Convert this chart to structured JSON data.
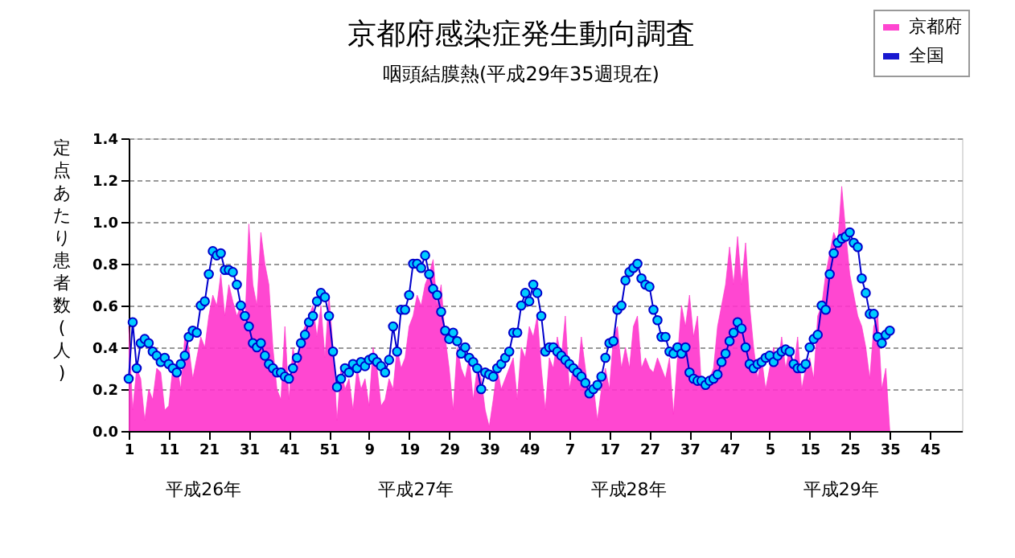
{
  "chart_data": {
    "type": "line",
    "title": "京都府感染症発生動向調査",
    "subtitle": "咽頭結膜熱(平成29年35週現在)",
    "ylabel": "定点あたり患者数(人)",
    "categories": [
      "1",
      null,
      null,
      null,
      null,
      null,
      null,
      null,
      null,
      null,
      "11",
      null,
      null,
      null,
      null,
      null,
      null,
      null,
      null,
      null,
      "21",
      null,
      null,
      null,
      null,
      null,
      null,
      null,
      null,
      null,
      "31",
      null,
      null,
      null,
      null,
      null,
      null,
      null,
      null,
      null,
      "41",
      null,
      null,
      null,
      null,
      null,
      null,
      null,
      null,
      null,
      "51",
      null,
      null,
      null,
      null,
      null,
      null,
      null,
      null,
      null,
      "9",
      null,
      null,
      null,
      null,
      null,
      null,
      null,
      null,
      null,
      "19",
      null,
      null,
      null,
      null,
      null,
      null,
      null,
      null,
      null,
      "29",
      null,
      null,
      null,
      null,
      null,
      null,
      null,
      null,
      null,
      "39",
      null,
      null,
      null,
      null,
      null,
      null,
      null,
      null,
      null,
      "49",
      null,
      null,
      null,
      null,
      null,
      null,
      null,
      null,
      null,
      "7",
      null,
      null,
      null,
      null,
      null,
      null,
      null,
      null,
      null,
      "17",
      null,
      null,
      null,
      null,
      null,
      null,
      null,
      null,
      null,
      "27",
      null,
      null,
      null,
      null,
      null,
      null,
      null,
      null,
      null,
      "37",
      null,
      null,
      null,
      null,
      null,
      null,
      null,
      null,
      null,
      "47",
      null,
      null,
      null,
      null,
      null,
      null,
      null,
      null,
      null,
      "5",
      null,
      null,
      null,
      null,
      null,
      null,
      null,
      null,
      null,
      "15",
      null,
      null,
      null,
      null,
      null,
      null,
      null,
      null,
      null,
      "25",
      null,
      null,
      null,
      null,
      null,
      null,
      null,
      null,
      null,
      "35",
      null,
      null,
      null,
      null,
      null,
      null,
      null,
      null,
      null,
      "45",
      null,
      null,
      null,
      null,
      null,
      null,
      null,
      null
    ],
    "series": [
      {
        "name": "京都府",
        "type": "area",
        "color": "#ff33cc",
        "values": [
          0.5,
          0.1,
          0.3,
          0.25,
          0.05,
          0.2,
          0.15,
          0.3,
          0.28,
          0.1,
          0.12,
          0.3,
          0.32,
          0.2,
          0.45,
          0.4,
          0.25,
          0.35,
          0.45,
          0.4,
          0.55,
          0.65,
          0.6,
          0.75,
          0.55,
          0.7,
          0.62,
          0.55,
          0.6,
          0.5,
          0.99,
          0.7,
          0.6,
          0.95,
          0.8,
          0.7,
          0.4,
          0.2,
          0.15,
          0.5,
          0.15,
          0.4,
          0.3,
          0.45,
          0.5,
          0.55,
          0.6,
          0.45,
          0.6,
          0.35,
          0.65,
          0.4,
          0.05,
          0.3,
          0.2,
          0.25,
          0.1,
          0.3,
          0.2,
          0.25,
          0.12,
          0.4,
          0.3,
          0.12,
          0.15,
          0.25,
          0.2,
          0.4,
          0.3,
          0.35,
          0.5,
          0.55,
          0.65,
          0.6,
          0.7,
          0.75,
          0.82,
          0.6,
          0.7,
          0.45,
          0.3,
          0.1,
          0.4,
          0.3,
          0.25,
          0.35,
          0.15,
          0.3,
          0.25,
          0.1,
          0.02,
          0.15,
          0.3,
          0.2,
          0.25,
          0.3,
          0.35,
          0.15,
          0.4,
          0.35,
          0.5,
          0.45,
          0.55,
          0.3,
          0.1,
          0.35,
          0.3,
          0.45,
          0.35,
          0.55,
          0.2,
          0.3,
          0.25,
          0.45,
          0.3,
          0.15,
          0.22,
          0.05,
          0.2,
          0.3,
          0.2,
          0.45,
          0.5,
          0.3,
          0.4,
          0.3,
          0.5,
          0.55,
          0.3,
          0.35,
          0.3,
          0.28,
          0.35,
          0.3,
          0.25,
          0.35,
          0.08,
          0.35,
          0.6,
          0.5,
          0.65,
          0.45,
          0.55,
          0.2,
          0.22,
          0.25,
          0.3,
          0.5,
          0.6,
          0.7,
          0.88,
          0.7,
          0.93,
          0.7,
          0.9,
          0.6,
          0.4,
          0.25,
          0.35,
          0.2,
          0.3,
          0.4,
          0.3,
          0.45,
          0.3,
          0.4,
          0.3,
          0.45,
          0.2,
          0.3,
          0.35,
          0.25,
          0.55,
          0.6,
          0.75,
          0.85,
          0.95,
          0.9,
          1.17,
          0.95,
          0.75,
          0.65,
          0.55,
          0.5,
          0.4,
          0.25,
          0.5,
          0.55,
          0.2,
          0.3,
          0.0,
          null,
          null,
          null,
          null,
          null,
          null,
          null,
          null,
          null,
          null,
          null,
          null,
          null,
          null,
          null,
          null,
          null,
          null
        ]
      },
      {
        "name": "全国",
        "color": "#0000cc",
        "marker": "circle",
        "values": [
          0.25,
          0.52,
          0.3,
          0.42,
          0.44,
          0.42,
          0.38,
          0.36,
          0.33,
          0.35,
          0.32,
          0.3,
          0.28,
          0.32,
          0.36,
          0.45,
          0.48,
          0.47,
          0.6,
          0.62,
          0.75,
          0.86,
          0.84,
          0.85,
          0.77,
          0.77,
          0.76,
          0.7,
          0.6,
          0.55,
          0.5,
          0.42,
          0.4,
          0.42,
          0.36,
          0.32,
          0.3,
          0.28,
          0.28,
          0.26,
          0.25,
          0.3,
          0.35,
          0.42,
          0.46,
          0.52,
          0.55,
          0.62,
          0.66,
          0.64,
          0.55,
          0.38,
          0.21,
          0.25,
          0.3,
          0.28,
          0.32,
          0.3,
          0.33,
          0.31,
          0.34,
          0.35,
          0.33,
          0.31,
          0.28,
          0.34,
          0.5,
          0.38,
          0.58,
          0.58,
          0.65,
          0.8,
          0.8,
          0.78,
          0.84,
          0.75,
          0.68,
          0.65,
          0.57,
          0.48,
          0.44,
          0.47,
          0.43,
          0.37,
          0.4,
          0.35,
          0.33,
          0.3,
          0.2,
          0.28,
          0.27,
          0.26,
          0.3,
          0.32,
          0.35,
          0.38,
          0.47,
          0.47,
          0.6,
          0.66,
          0.62,
          0.7,
          0.66,
          0.55,
          0.38,
          0.4,
          0.4,
          0.38,
          0.36,
          0.34,
          0.32,
          0.3,
          0.28,
          0.26,
          0.23,
          0.18,
          0.2,
          0.22,
          0.26,
          0.35,
          0.42,
          0.43,
          0.58,
          0.6,
          0.72,
          0.76,
          0.78,
          0.8,
          0.73,
          0.7,
          0.69,
          0.58,
          0.53,
          0.45,
          0.45,
          0.38,
          0.37,
          0.4,
          0.37,
          0.4,
          0.28,
          0.25,
          0.24,
          0.24,
          0.22,
          0.24,
          0.25,
          0.27,
          0.33,
          0.37,
          0.43,
          0.47,
          0.52,
          0.49,
          0.4,
          0.32,
          0.3,
          0.32,
          0.33,
          0.35,
          0.36,
          0.33,
          0.36,
          0.38,
          0.39,
          0.38,
          0.32,
          0.3,
          0.3,
          0.32,
          0.4,
          0.44,
          0.46,
          0.6,
          0.58,
          0.75,
          0.85,
          0.9,
          0.92,
          0.93,
          0.95,
          0.9,
          0.88,
          0.73,
          0.66,
          0.56,
          0.56,
          0.45,
          0.42,
          0.46,
          0.48,
          null,
          null,
          null,
          null,
          null,
          null,
          null,
          null,
          null,
          null,
          null,
          null,
          null,
          null,
          null,
          null,
          null,
          null
        ]
      }
    ],
    "ylim": [
      0,
      1.4
    ],
    "yticks": [
      {
        "value": 0,
        "label": "0.0"
      },
      {
        "value": 0.2,
        "label": "0.2"
      },
      {
        "value": 0.4,
        "label": "0.4"
      },
      {
        "value": 0.6,
        "label": "0.6"
      },
      {
        "value": 0.8,
        "label": "0.8"
      },
      {
        "value": 1.0,
        "label": "1.0"
      },
      {
        "value": 1.2,
        "label": "1.2"
      },
      {
        "value": 1.4,
        "label": "1.4"
      }
    ],
    "grid": "y",
    "legend": "top right",
    "annotations": [
      "平成26年",
      "平成27年",
      "平成28年",
      "平成29年"
    ]
  }
}
